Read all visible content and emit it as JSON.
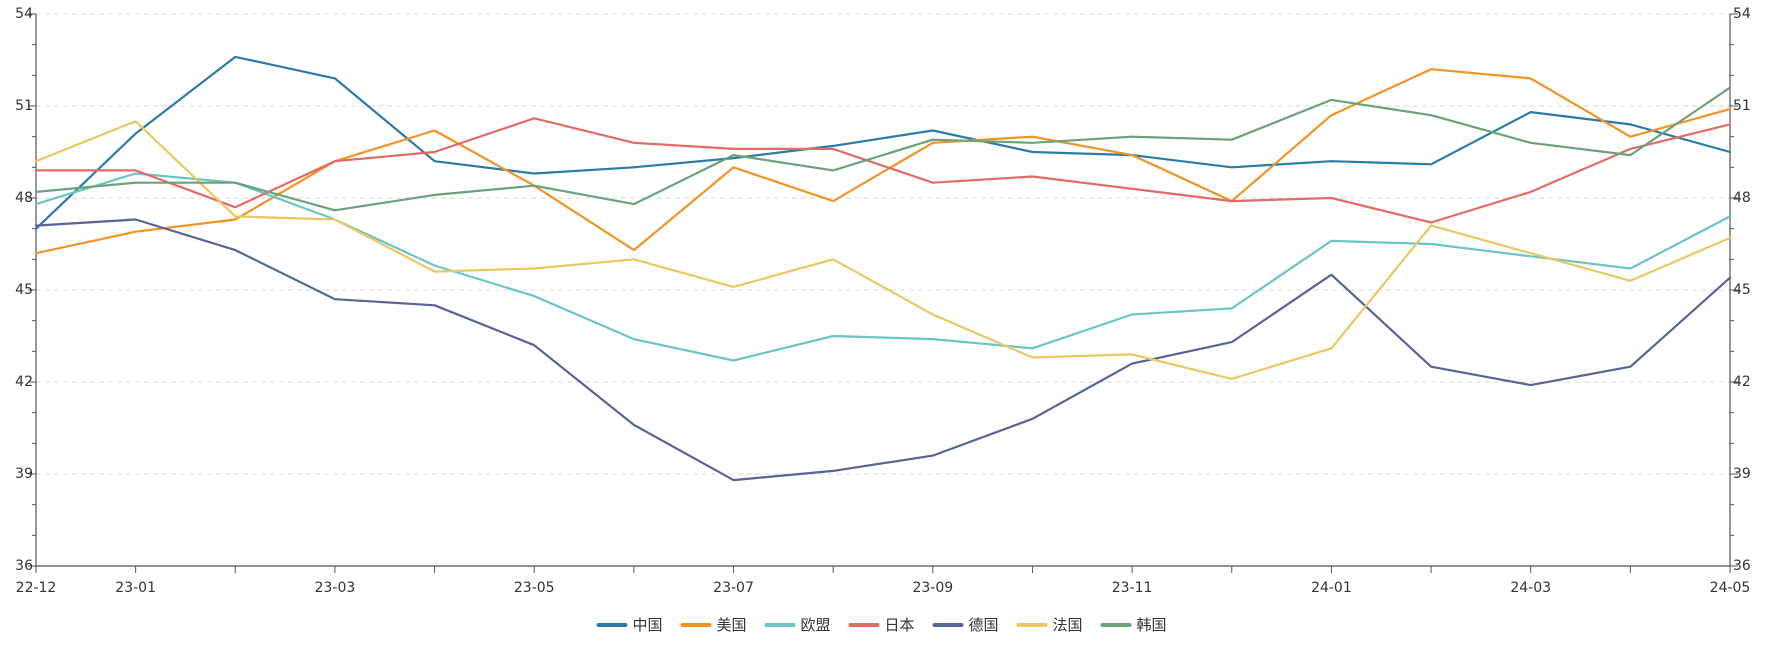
{
  "chart_data": {
    "type": "line",
    "title": "",
    "xlabel": "",
    "ylabel": "",
    "x": [
      "22-12",
      "23-01",
      "23-02",
      "23-03",
      "23-04",
      "23-05",
      "23-06",
      "23-07",
      "23-08",
      "23-09",
      "23-10",
      "23-11",
      "23-12",
      "24-01",
      "24-02",
      "24-03",
      "24-04",
      "24-05"
    ],
    "x_tick_labels": [
      "22-12",
      "23-01",
      "23-03",
      "23-05",
      "23-07",
      "23-09",
      "23-11",
      "24-01",
      "24-03",
      "24-05"
    ],
    "ylim": [
      36,
      54
    ],
    "y_ticks": [
      36,
      39,
      42,
      45,
      48,
      51,
      54
    ],
    "grid": "horizontal-dashed",
    "dual_y_axis": true,
    "legend_position": "bottom",
    "series": [
      {
        "name": "中国",
        "color": "#2b7ba6",
        "values": [
          47.0,
          50.1,
          52.6,
          51.9,
          49.2,
          48.8,
          49.0,
          49.3,
          49.7,
          50.2,
          49.5,
          49.4,
          49.0,
          49.2,
          49.1,
          50.8,
          50.4,
          49.5
        ]
      },
      {
        "name": "美国",
        "color": "#f39325",
        "values": [
          46.2,
          46.9,
          47.3,
          49.2,
          50.2,
          48.4,
          46.3,
          49.0,
          47.9,
          49.8,
          50.0,
          49.4,
          47.9,
          50.7,
          52.2,
          51.9,
          50.0,
          50.9
        ]
      },
      {
        "name": "欧盟",
        "color": "#6cc5c4",
        "values": [
          47.8,
          48.8,
          48.5,
          47.3,
          45.8,
          44.8,
          43.4,
          42.7,
          43.5,
          43.4,
          43.1,
          44.2,
          44.4,
          46.6,
          46.5,
          46.1,
          45.7,
          47.4
        ]
      },
      {
        "name": "日本",
        "color": "#e26a67",
        "values": [
          48.9,
          48.9,
          47.7,
          49.2,
          49.5,
          50.6,
          49.8,
          49.6,
          49.6,
          48.5,
          48.7,
          48.3,
          47.9,
          48.0,
          47.2,
          48.2,
          49.6,
          50.4
        ]
      },
      {
        "name": "德国",
        "color": "#576495",
        "values": [
          47.1,
          47.3,
          46.3,
          44.7,
          44.5,
          43.2,
          40.6,
          38.8,
          39.1,
          39.6,
          40.8,
          42.6,
          43.3,
          45.5,
          42.5,
          41.9,
          42.5,
          45.4
        ]
      },
      {
        "name": "法国",
        "color": "#eac863",
        "values": [
          49.2,
          50.5,
          47.4,
          47.3,
          45.6,
          45.7,
          46.0,
          45.1,
          46.0,
          44.2,
          42.8,
          42.9,
          42.1,
          43.1,
          47.1,
          46.2,
          45.3,
          46.7
        ]
      },
      {
        "name": "韩国",
        "color": "#6ba279",
        "values": [
          48.2,
          48.5,
          48.5,
          47.6,
          48.1,
          48.4,
          47.8,
          49.4,
          48.9,
          49.9,
          49.8,
          50.0,
          49.9,
          51.2,
          50.7,
          49.8,
          49.4,
          51.6
        ]
      }
    ]
  }
}
